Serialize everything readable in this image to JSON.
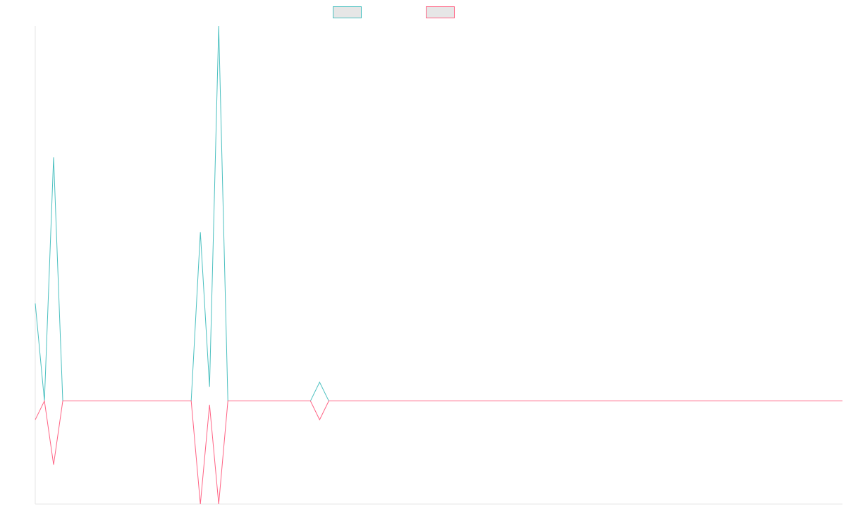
{
  "chart_data": {
    "type": "line",
    "title": "",
    "xlabel": "",
    "ylabel": "",
    "x": [
      0,
      1,
      2,
      3,
      4,
      5,
      6,
      7,
      8,
      9,
      10,
      11,
      12,
      13,
      14,
      15,
      16,
      17,
      18,
      19,
      20,
      21,
      22,
      23,
      24,
      25,
      26,
      27,
      28,
      29,
      30,
      31,
      32,
      33,
      34,
      35,
      36,
      37,
      38,
      39,
      40,
      41,
      42,
      43,
      44,
      45,
      46,
      47,
      48,
      49,
      50,
      51,
      52,
      53,
      54,
      55,
      56,
      57,
      58,
      59,
      60,
      61,
      62,
      63,
      64,
      65,
      66,
      67,
      68,
      69,
      70,
      71,
      72,
      73,
      74,
      75,
      76,
      77,
      78,
      79,
      80,
      81,
      82,
      83,
      84,
      85,
      86,
      87,
      88
    ],
    "series": [
      {
        "color": "#4bc0c0",
        "values": [
          5.2,
          0,
          13,
          0,
          0,
          0,
          0,
          0,
          0,
          0,
          0,
          0,
          0,
          0,
          0,
          0,
          0,
          0,
          9,
          0.75,
          20,
          0,
          0,
          0,
          0,
          0,
          0,
          0,
          0,
          0,
          0,
          1,
          0,
          0,
          0,
          0,
          0,
          0,
          0,
          0,
          0,
          0,
          0,
          0,
          0,
          0,
          0,
          0,
          0,
          0,
          0,
          0,
          0,
          0,
          0,
          0,
          0,
          0,
          0,
          0,
          0,
          0,
          0,
          0,
          0,
          0,
          0,
          0,
          0,
          0,
          0,
          0,
          0,
          0,
          0,
          0,
          0,
          0,
          0,
          0,
          0,
          0,
          0,
          0,
          0,
          0,
          0,
          0,
          0
        ]
      },
      {
        "color": "#ff6384",
        "values": [
          -1,
          0,
          -3.4,
          0,
          0,
          0,
          0,
          0,
          0,
          0,
          0,
          0,
          0,
          0,
          0,
          0,
          0,
          0,
          -5.5,
          -0.2,
          -5.5,
          0,
          0,
          0,
          0,
          0,
          0,
          0,
          0,
          0,
          0,
          -1,
          0,
          0,
          0,
          0,
          0,
          0,
          0,
          0,
          0,
          0,
          0,
          0,
          0,
          0,
          0,
          0,
          0,
          0,
          0,
          0,
          0,
          0,
          0,
          0,
          0,
          0,
          0,
          0,
          0,
          0,
          0,
          0,
          0,
          0,
          0,
          0,
          0,
          0,
          0,
          0,
          0,
          0,
          0,
          0,
          0,
          0,
          0,
          0,
          0,
          0,
          0,
          0,
          0,
          0,
          0,
          0,
          0
        ]
      }
    ],
    "ylim": [
      -5.5,
      20
    ],
    "xlim": [
      0,
      88
    ],
    "grid": false,
    "legend_position": "top-center"
  }
}
